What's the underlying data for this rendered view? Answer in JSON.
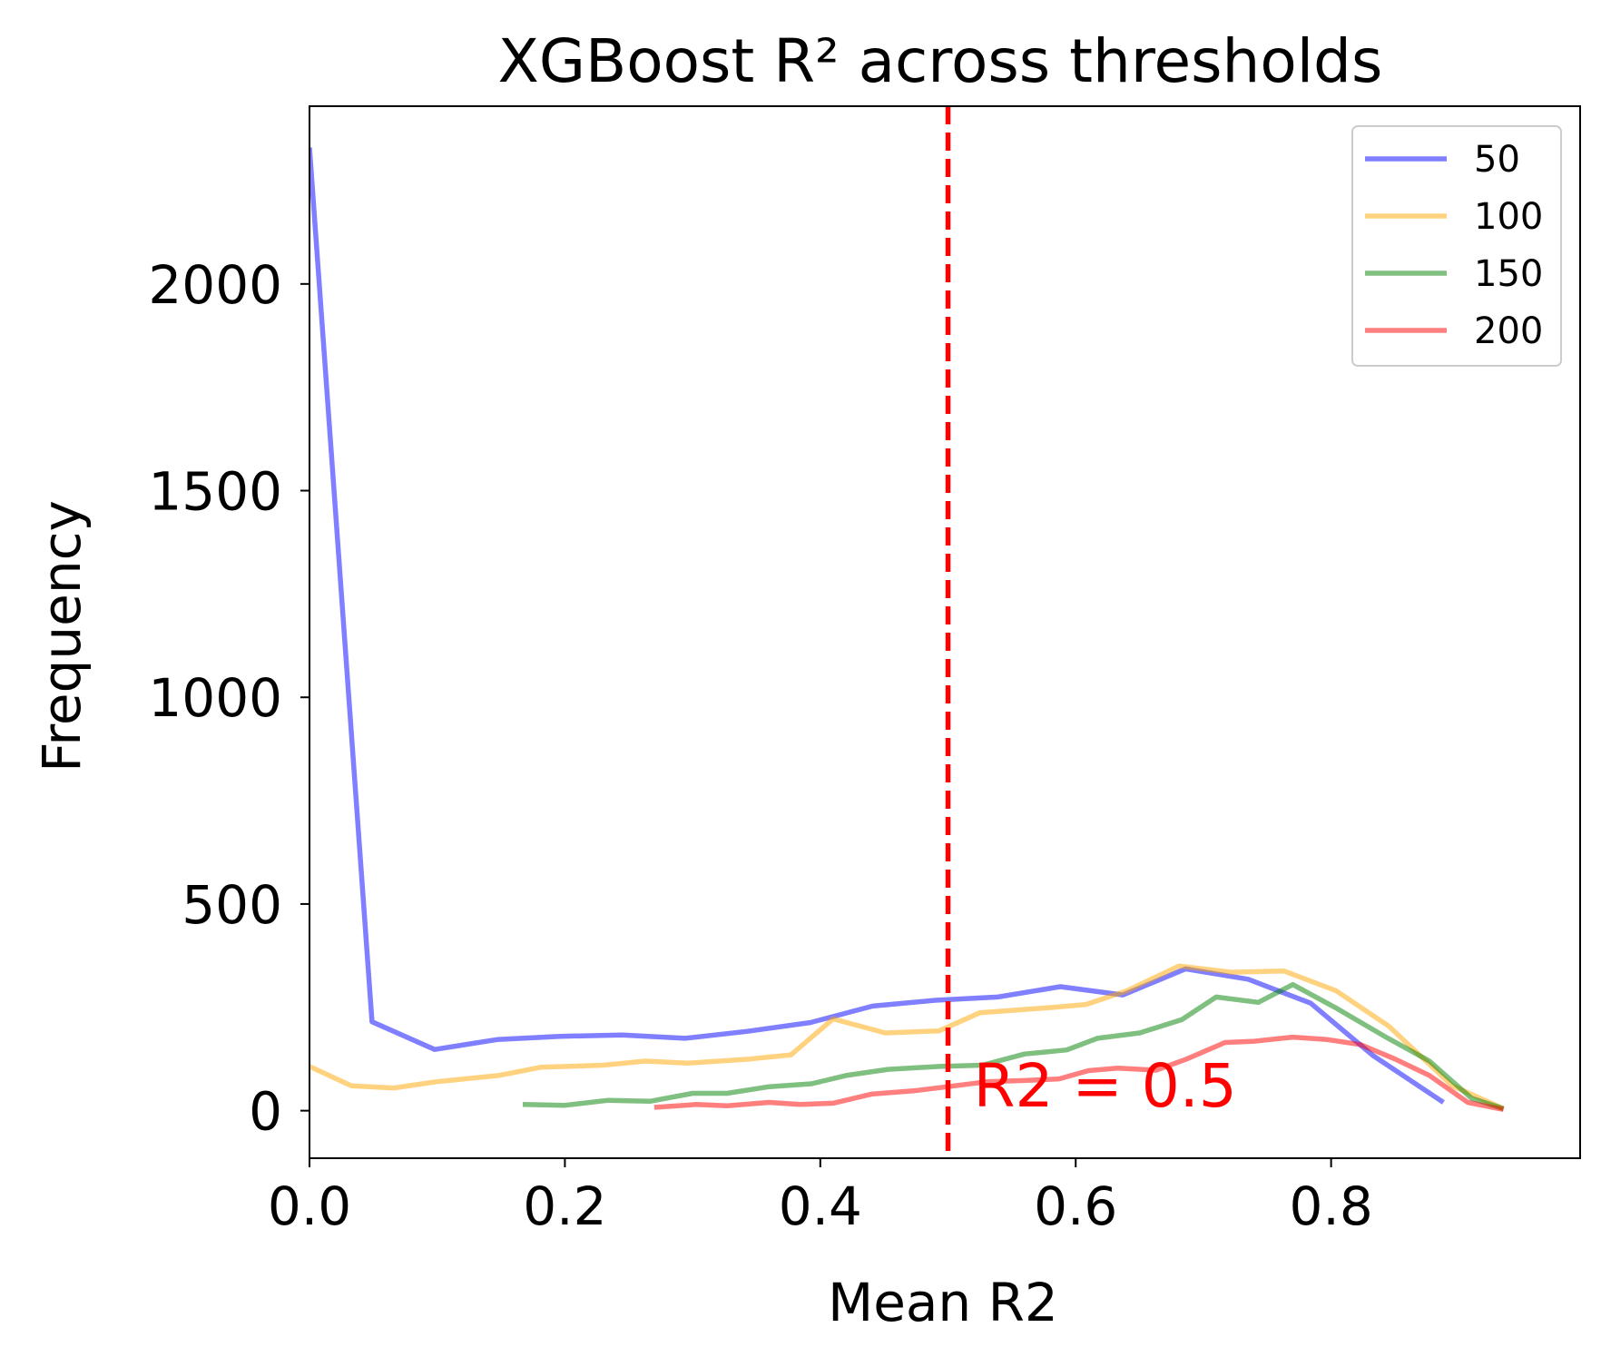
{
  "chart_data": {
    "type": "line",
    "title": "XGBoost R² across thresholds",
    "xlabel": "Mean R2",
    "ylabel": "Frequency",
    "xlim": [
      0.0,
      0.995
    ],
    "ylim": [
      -115,
      2430
    ],
    "xticks": [
      0.0,
      0.2,
      0.4,
      0.6,
      0.8
    ],
    "xtick_labels": [
      "0.0",
      "0.2",
      "0.4",
      "0.6",
      "0.8"
    ],
    "yticks": [
      0,
      500,
      1000,
      1500,
      2000
    ],
    "ytick_labels": [
      "0",
      "500",
      "1000",
      "1500",
      "2000"
    ],
    "grid": false,
    "legend_position": "top-right",
    "reference_line": {
      "x": 0.5,
      "color": "#ff0000",
      "style": "dashed",
      "label": "R2 = 0.5",
      "label_x": 0.52,
      "label_y": 10
    },
    "series": [
      {
        "name": "50",
        "color": "#0000ff",
        "points": [
          [
            0.0,
            2330
          ],
          [
            0.049,
            215
          ],
          [
            0.098,
            148
          ],
          [
            0.147,
            172
          ],
          [
            0.196,
            180
          ],
          [
            0.245,
            183
          ],
          [
            0.294,
            175
          ],
          [
            0.343,
            192
          ],
          [
            0.392,
            213
          ],
          [
            0.441,
            253
          ],
          [
            0.49,
            267
          ],
          [
            0.539,
            275
          ],
          [
            0.588,
            300
          ],
          [
            0.637,
            280
          ],
          [
            0.686,
            343
          ],
          [
            0.735,
            318
          ],
          [
            0.784,
            260
          ],
          [
            0.833,
            133
          ],
          [
            0.888,
            20
          ]
        ]
      },
      {
        "name": "100",
        "color": "#ffa500",
        "points": [
          [
            0.0,
            107
          ],
          [
            0.033,
            60
          ],
          [
            0.066,
            55
          ],
          [
            0.099,
            70
          ],
          [
            0.148,
            85
          ],
          [
            0.181,
            105
          ],
          [
            0.23,
            110
          ],
          [
            0.263,
            120
          ],
          [
            0.296,
            115
          ],
          [
            0.345,
            125
          ],
          [
            0.377,
            135
          ],
          [
            0.41,
            222
          ],
          [
            0.451,
            188
          ],
          [
            0.493,
            193
          ],
          [
            0.525,
            237
          ],
          [
            0.583,
            250
          ],
          [
            0.608,
            257
          ],
          [
            0.64,
            290
          ],
          [
            0.681,
            350
          ],
          [
            0.722,
            335
          ],
          [
            0.763,
            338
          ],
          [
            0.804,
            290
          ],
          [
            0.845,
            205
          ],
          [
            0.895,
            60
          ],
          [
            0.935,
            5
          ]
        ]
      },
      {
        "name": "150",
        "color": "#008000",
        "points": [
          [
            0.167,
            15
          ],
          [
            0.2,
            13
          ],
          [
            0.234,
            25
          ],
          [
            0.267,
            23
          ],
          [
            0.3,
            42
          ],
          [
            0.327,
            42
          ],
          [
            0.36,
            58
          ],
          [
            0.393,
            65
          ],
          [
            0.42,
            85
          ],
          [
            0.453,
            100
          ],
          [
            0.493,
            107
          ],
          [
            0.527,
            110
          ],
          [
            0.56,
            137
          ],
          [
            0.593,
            147
          ],
          [
            0.617,
            175
          ],
          [
            0.65,
            188
          ],
          [
            0.683,
            220
          ],
          [
            0.71,
            275
          ],
          [
            0.743,
            262
          ],
          [
            0.77,
            305
          ],
          [
            0.803,
            250
          ],
          [
            0.843,
            178
          ],
          [
            0.877,
            120
          ],
          [
            0.91,
            30
          ],
          [
            0.935,
            5
          ]
        ]
      },
      {
        "name": "200",
        "color": "#ff0000",
        "points": [
          [
            0.27,
            8
          ],
          [
            0.303,
            15
          ],
          [
            0.327,
            12
          ],
          [
            0.36,
            20
          ],
          [
            0.384,
            15
          ],
          [
            0.41,
            18
          ],
          [
            0.44,
            40
          ],
          [
            0.473,
            48
          ],
          [
            0.497,
            57
          ],
          [
            0.53,
            70
          ],
          [
            0.56,
            73
          ],
          [
            0.587,
            77
          ],
          [
            0.61,
            97
          ],
          [
            0.633,
            103
          ],
          [
            0.663,
            98
          ],
          [
            0.687,
            125
          ],
          [
            0.717,
            165
          ],
          [
            0.74,
            168
          ],
          [
            0.77,
            178
          ],
          [
            0.797,
            172
          ],
          [
            0.823,
            160
          ],
          [
            0.85,
            125
          ],
          [
            0.877,
            85
          ],
          [
            0.907,
            20
          ],
          [
            0.935,
            3
          ]
        ]
      }
    ]
  }
}
